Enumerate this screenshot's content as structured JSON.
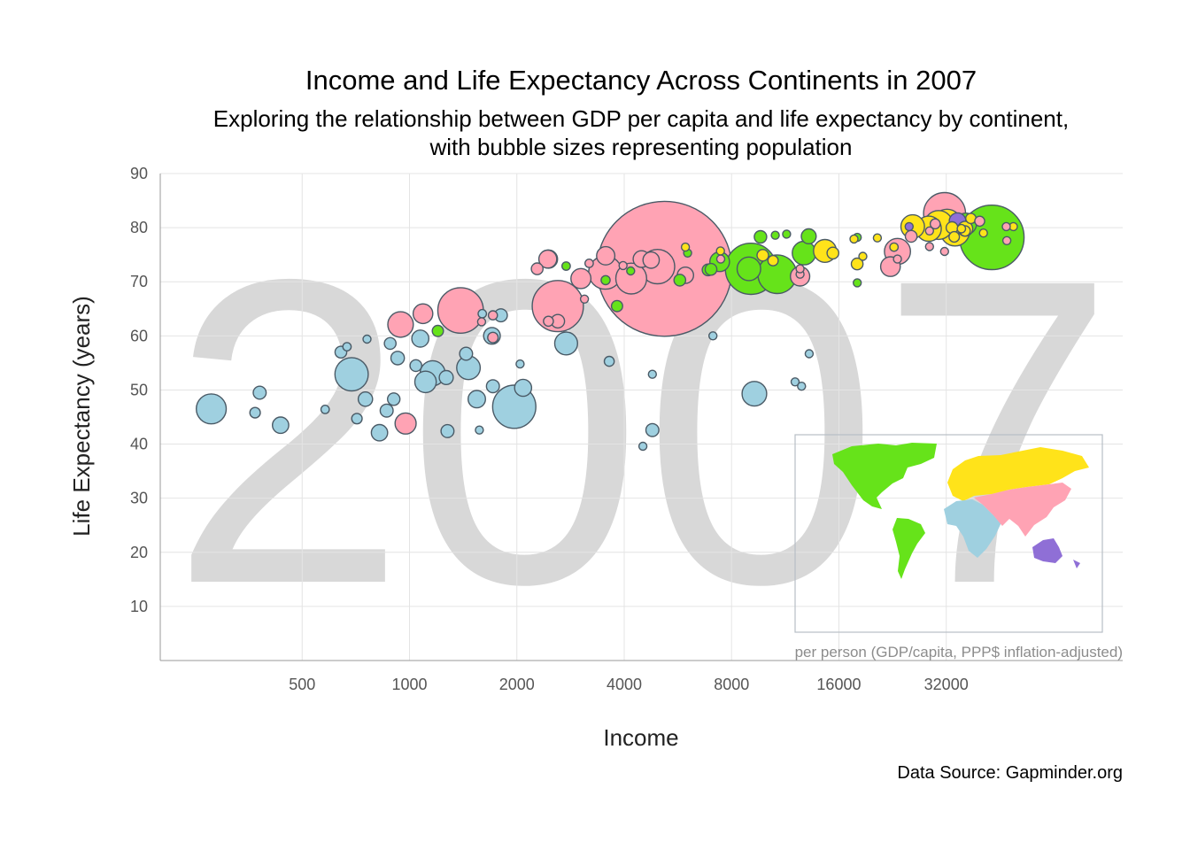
{
  "chart_data": {
    "type": "scatter",
    "title": "Income and Life Expectancy Across Continents in 2007",
    "subtitle_lines": [
      "Exploring the relationship between GDP per capita and life expectancy by continent,",
      "with bubble sizes representing population"
    ],
    "xlabel": "Income",
    "ylabel": "Life Expectancy (years)",
    "x_note": "per person (GDP/capita, PPP$ inflation-adjusted)",
    "watermark": "2007",
    "source": "Data Source: Gapminder.org",
    "x_scale": "log2",
    "xlim": [
      200,
      100000
    ],
    "ylim": [
      0,
      90
    ],
    "x_ticks": [
      500,
      1000,
      2000,
      4000,
      8000,
      16000,
      32000
    ],
    "x_tick_labels": [
      "500",
      "1000",
      "2000",
      "4000",
      "8000",
      "16000",
      "32000"
    ],
    "y_ticks": [
      10,
      20,
      30,
      40,
      50,
      60,
      70,
      80,
      90
    ],
    "y_tick_labels": [
      "10",
      "20",
      "30",
      "40",
      "50",
      "60",
      "70",
      "80",
      "90"
    ],
    "grid": true,
    "legend": "world map inset, bottom-right, continents colored",
    "bubble_size": "population (millions)",
    "colors": {
      "Africa": "#9fd0e0",
      "Americas": "#66e31a",
      "Asia": "#ffa3b4",
      "Europe": "#ffe31a",
      "Oceania": "#8f6fd6",
      "outline": "#4a5a66",
      "watermark": "#d8d8d8"
    },
    "series": [
      {
        "name": "Africa",
        "points": [
          [
            278,
            46.5,
            65
          ],
          [
            435,
            43.5,
            19
          ],
          [
            380,
            49.5,
            12
          ],
          [
            369,
            45.8,
            8
          ],
          [
            580,
            46.4,
            5
          ],
          [
            642,
            57,
            10
          ],
          [
            668,
            58,
            5
          ],
          [
            688,
            52.9,
            80
          ],
          [
            712,
            44.7,
            8
          ],
          [
            752,
            48.3,
            15
          ],
          [
            760,
            59.4,
            4
          ],
          [
            824,
            42.1,
            19
          ],
          [
            863,
            46.2,
            12
          ],
          [
            883,
            58.6,
            10
          ],
          [
            903,
            48.3,
            11
          ],
          [
            926,
            55.9,
            13
          ],
          [
            1042,
            54.5,
            10
          ],
          [
            1072,
            59.5,
            21
          ],
          [
            1109,
            51.5,
            33
          ],
          [
            1161,
            53.1,
            45
          ],
          [
            1268,
            52.3,
            14
          ],
          [
            1278,
            42.4,
            12
          ],
          [
            1441,
            56.7,
            12
          ],
          [
            1463,
            54.1,
            40
          ],
          [
            1544,
            48.3,
            22
          ],
          [
            1570,
            42.6,
            3
          ],
          [
            1600,
            64.1,
            5
          ],
          [
            1713,
            50.7,
            12
          ],
          [
            1703,
            60.0,
            20
          ],
          [
            1804,
            63.8,
            12
          ],
          [
            1967,
            46.9,
            135
          ],
          [
            2082,
            50.4,
            21
          ],
          [
            2042,
            54.8,
            1
          ],
          [
            2749,
            58.6,
            38
          ],
          [
            3632,
            55.3,
            7
          ],
          [
            4513,
            39.6,
            2
          ],
          [
            4797,
            52.9,
            3
          ],
          [
            4797,
            42.6,
            12
          ],
          [
            7093,
            60.0,
            1
          ],
          [
            9270,
            49.3,
            44
          ],
          [
            12057,
            51.5,
            2
          ],
          [
            12570,
            50.7,
            1.5
          ],
          [
            13206,
            56.7,
            2.5
          ]
        ]
      },
      {
        "name": "Americas",
        "points": [
          [
            1201,
            60.9,
            9
          ],
          [
            2750,
            72.9,
            5
          ],
          [
            3548,
            70.3,
            6
          ],
          [
            3820,
            65.5,
            9
          ],
          [
            4172,
            72.0,
            4.5
          ],
          [
            5728,
            70.3,
            10
          ],
          [
            6025,
            75.3,
            3
          ],
          [
            6873,
            72.2,
            10
          ],
          [
            7006,
            72.3,
            10
          ],
          [
            7409,
            73.7,
            28
          ],
          [
            8948,
            72.4,
            40
          ],
          [
            9066,
            72.4,
            190
          ],
          [
            9645,
            78.3,
            11
          ],
          [
            10611,
            78.6,
            3
          ],
          [
            10742,
            71.4,
            108
          ],
          [
            11415,
            78.8,
            4
          ],
          [
            12779,
            75.3,
            40
          ],
          [
            13172,
            78.4,
            16
          ],
          [
            18009,
            78.2,
            3
          ],
          [
            18009,
            69.8,
            1.3
          ],
          [
            36319,
            80.7,
            33
          ],
          [
            42952,
            78.2,
            301
          ]
        ]
      },
      {
        "name": "Asia",
        "points": [
          [
            944,
            62.1,
            47
          ],
          [
            975,
            43.8,
            32
          ],
          [
            1091,
            64.1,
            28
          ],
          [
            1391,
            64.7,
            150
          ],
          [
            1593,
            62.6,
            2.5
          ],
          [
            1713,
            63.8,
            6
          ],
          [
            2452,
            62.7,
            7
          ],
          [
            2605,
            65.5,
            190
          ],
          [
            2442,
            74.2,
            23
          ],
          [
            3095,
            66.8,
            3
          ],
          [
            3190,
            73.4,
            5
          ],
          [
            4471,
            74.2,
            20
          ],
          [
            4959,
            72.8,
            85
          ],
          [
            3540,
            71.7,
            80
          ],
          [
            5186,
            72.4,
            1318
          ],
          [
            4184,
            70.6,
            69
          ],
          [
            4759,
            74.0,
            19
          ],
          [
            5937,
            71.2,
            19
          ],
          [
            2280,
            72.4,
            10
          ],
          [
            2452,
            74.2,
            24
          ],
          [
            3025,
            70.6,
            29
          ],
          [
            3549,
            74.8,
            24
          ],
          [
            12452,
            71.4,
            3
          ],
          [
            12452,
            72.4,
            3
          ],
          [
            7458,
            74.2,
            3
          ],
          [
            12452,
            71.0,
            27
          ],
          [
            22316,
            72.8,
            28
          ],
          [
            23348,
            74.2,
            3
          ],
          [
            25523,
            78.4,
            10
          ],
          [
            28718,
            79.4,
            3
          ],
          [
            29796,
            80.7,
            7
          ],
          [
            31656,
            82.6,
            127
          ],
          [
            39724,
            81.2,
            7
          ],
          [
            47143,
            80.2,
            4
          ],
          [
            47307,
            77.6,
            1
          ],
          [
            23348,
            75.6,
            49
          ],
          [
            28718,
            76.5,
            2
          ],
          [
            31656,
            75.6,
            1
          ],
          [
            3970,
            73.0,
            3
          ],
          [
            1713,
            59.7,
            8
          ],
          [
            2605,
            62.7,
            13
          ]
        ]
      },
      {
        "name": "Europe",
        "points": [
          [
            5937,
            76.4,
            3
          ],
          [
            7446,
            75.7,
            4.5
          ],
          [
            9787,
            74.9,
            9.5
          ],
          [
            10461,
            73.9,
            7.5
          ],
          [
            14619,
            75.7,
            38
          ],
          [
            15390,
            75.3,
            10
          ],
          [
            18008,
            73.3,
            10
          ],
          [
            20510,
            78.1,
            4
          ],
          [
            22833,
            76.4,
            5
          ],
          [
            25768,
            80.2,
            40
          ],
          [
            28569,
            79.8,
            46
          ],
          [
            30470,
            80.5,
            60
          ],
          [
            32170,
            80.7,
            62
          ],
          [
            33860,
            79.3,
            61
          ],
          [
            33207,
            80.0,
            10
          ],
          [
            35278,
            79.8,
            5
          ],
          [
            36126,
            79.4,
            8
          ],
          [
            36181,
            79.8,
            16
          ],
          [
            37506,
            81.7,
            7.5
          ],
          [
            40676,
            79.0,
            4
          ],
          [
            49357,
            80.2,
            4.6
          ],
          [
            33692,
            78.3,
            8
          ],
          [
            18678,
            74.7,
            2
          ],
          [
            17641,
            77.9,
            2
          ]
        ]
      },
      {
        "name": "Oceania",
        "points": [
          [
            25185,
            80.2,
            4
          ],
          [
            34435,
            81.2,
            20
          ]
        ]
      }
    ]
  }
}
